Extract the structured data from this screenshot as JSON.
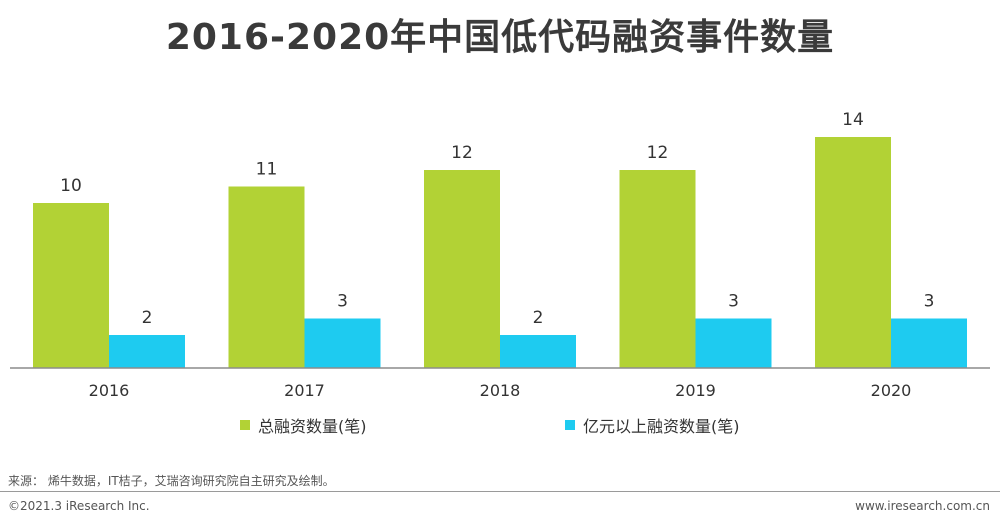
{
  "title": "2016-2020年中国低代码融资事件数量",
  "chart_data": {
    "type": "bar",
    "categories": [
      "2016",
      "2017",
      "2018",
      "2019",
      "2020"
    ],
    "series": [
      {
        "name": "总融资数量(笔)",
        "values": [
          10,
          11,
          12,
          12,
          14
        ],
        "color": "#b2d235"
      },
      {
        "name": "亿元以上融资数量(笔)",
        "values": [
          2,
          3,
          2,
          3,
          3
        ],
        "color": "#1ecbf0"
      }
    ],
    "xlabel": "",
    "ylabel": "",
    "ylim": [
      0,
      14
    ],
    "grid": false,
    "legend": "bottom-center",
    "show_data_labels": true
  },
  "footer": {
    "source": "来源：  烯牛数据，IT桔子，艾瑞咨询研究院自主研究及绘制。",
    "copyright": "©2021.3 iResearch Inc.",
    "website": "www.iresearch.com.cn"
  }
}
